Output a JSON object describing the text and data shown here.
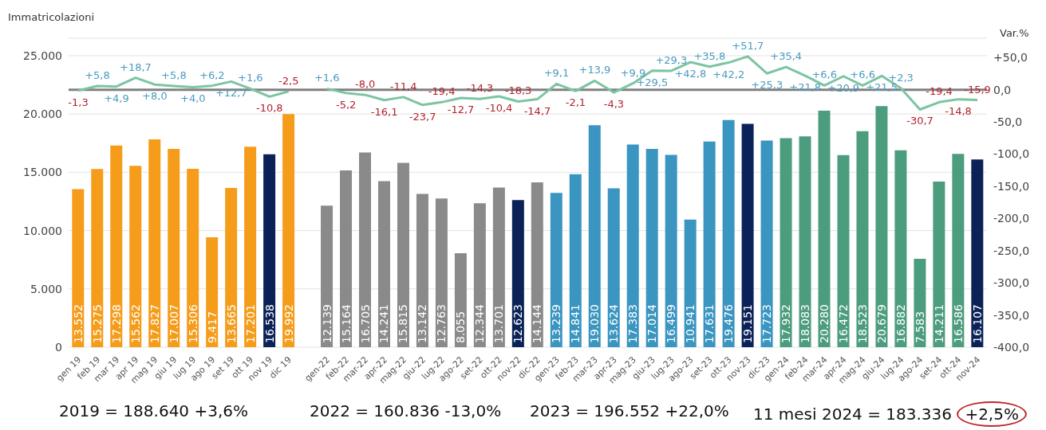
{
  "chart_data": {
    "type": "bar",
    "ylabel": "Immatricolazioni",
    "y2label": "Var.%",
    "categories": [
      "gen 19",
      "feb 19",
      "mar 19",
      "apr 19",
      "mag 19",
      "giu 19",
      "lug 19",
      "ago 19",
      "set 19",
      "ott 19",
      "nov 19",
      "dic 19",
      null,
      "gen-22",
      "feb-22",
      "mar-22",
      "apr-22",
      "mag-22",
      "giu-22",
      "lug-22",
      "ago-22",
      "set-22",
      "ott-22",
      "nov-22",
      "dic-22",
      "gen-23",
      "feb-23",
      "mar-23",
      "apr-23",
      "mag-23",
      "giu-23",
      "lug-23",
      "ago-23",
      "set-23",
      "ott-23",
      "nov-23",
      "dic-23",
      "gen-24",
      "feb-24",
      "mar-24",
      "apr-24",
      "mag-24",
      "giu-24",
      "lug-24",
      "ago-24",
      "set-24",
      "ott-24",
      "nov-24"
    ],
    "series": [
      {
        "values": [
          13552,
          15275,
          17298,
          15562,
          17827,
          17007,
          15306,
          9417,
          13665,
          17201,
          16538,
          19992,
          null,
          12139,
          15164,
          16705,
          14241,
          15815,
          13142,
          12763,
          8055,
          12344,
          13701,
          12623,
          14144,
          13239,
          14841,
          19030,
          13624,
          17383,
          17014,
          16499,
          10941,
          17631,
          19476,
          19151,
          17723,
          17932,
          18083,
          20280,
          16472,
          18523,
          20679,
          16882,
          7583,
          14211,
          16586,
          16107
        ],
        "colors": [
          "#f59c1a",
          "#f59c1a",
          "#f59c1a",
          "#f59c1a",
          "#f59c1a",
          "#f59c1a",
          "#f59c1a",
          "#f59c1a",
          "#f59c1a",
          "#f59c1a",
          "#0b2258",
          "#f59c1a",
          null,
          "#8a8a8a",
          "#8a8a8a",
          "#8a8a8a",
          "#8a8a8a",
          "#8a8a8a",
          "#8a8a8a",
          "#8a8a8a",
          "#8a8a8a",
          "#8a8a8a",
          "#8a8a8a",
          "#0b2258",
          "#8a8a8a",
          "#3a95c0",
          "#3a95c0",
          "#3a95c0",
          "#3a95c0",
          "#3a95c0",
          "#3a95c0",
          "#3a95c0",
          "#3a95c0",
          "#3a95c0",
          "#3a95c0",
          "#0b2258",
          "#3a95c0",
          "#4c9c7e",
          "#4c9c7e",
          "#4c9c7e",
          "#4c9c7e",
          "#4c9c7e",
          "#4c9c7e",
          "#4c9c7e",
          "#4c9c7e",
          "#4c9c7e",
          "#4c9c7e",
          "#0b2258"
        ],
        "value_labels": [
          "13.552",
          "15.275",
          "17.298",
          "15.562",
          "17.827",
          "17.007",
          "15.306",
          "9.417",
          "13.665",
          "17.201",
          "16.538",
          "19.992",
          null,
          "12.139",
          "15.164",
          "16.705",
          "14.241",
          "15.815",
          "13.142",
          "12.763",
          "8.055",
          "12.344",
          "13.701",
          "12.623",
          "14.144",
          "13.239",
          "14.841",
          "19.030",
          "13.624",
          "17.383",
          "17.014",
          "16.499",
          "10.941",
          "17.631",
          "19.476",
          "19.151",
          "17.723",
          "17.932",
          "18.083",
          "20.280",
          "16.472",
          "18.523",
          "20.679",
          "16.882",
          "7.583",
          "14.211",
          "16.586",
          "16.107"
        ]
      },
      {
        "type": "line",
        "axis": "y2",
        "color": "#7cc4a2",
        "values": [
          -1.3,
          5.8,
          4.9,
          18.7,
          8.0,
          5.8,
          4.0,
          6.2,
          12.7,
          1.6,
          -10.8,
          -2.5,
          null,
          1.6,
          -5.2,
          -8.0,
          -16.1,
          -11.4,
          -23.7,
          -19.4,
          -12.7,
          -14.3,
          -10.4,
          -18.3,
          -14.7,
          9.1,
          -2.1,
          13.9,
          -4.3,
          9.9,
          29.5,
          29.3,
          42.8,
          35.8,
          42.2,
          51.7,
          25.3,
          35.4,
          21.8,
          6.6,
          20.9,
          6.6,
          21.5,
          2.3,
          -30.7,
          -19.4,
          -14.8,
          -15.9
        ],
        "value_labels": [
          "-1,3",
          "+5,8",
          "+4,9",
          "+18,7",
          "+8,0",
          "+5,8",
          "+4,0",
          "+6,2",
          "+12,7",
          "+1,6",
          "-10,8",
          "-2,5",
          null,
          "+1,6",
          "-5,2",
          "-8,0",
          "-16,1",
          "-11,4",
          "-23,7",
          "-19,4",
          "-12,7",
          "-14,3",
          "-10,4",
          "-18,3",
          "-14,7",
          "+9,1",
          "-2,1",
          "+13,9",
          "-4,3",
          "+9,9",
          "+29,5",
          "+29,3",
          "+42,8",
          "+35,8",
          "+42,2",
          "+51,7",
          "+25,3",
          "+35,4",
          "+21,8",
          "+6,6",
          "+20,9",
          "+6,6",
          "+21,5",
          "+2,3",
          "-30,7",
          "-19,4",
          "-14,8",
          "-15,9"
        ]
      }
    ],
    "ylim": [
      0,
      26500
    ],
    "yticks": [
      0,
      {
        "value": 5000,
        "label": "5.000"
      },
      {
        "value": 10000,
        "label": "10.000"
      },
      {
        "value": 15000,
        "label": "15.000"
      },
      {
        "value": 20000,
        "label": "20.000"
      },
      {
        "value": 25000,
        "label": "25.000"
      }
    ],
    "y2lim": [
      -400,
      80
    ],
    "y2ticks": [
      {
        "value": -400,
        "label": "-400,0"
      },
      {
        "value": -350,
        "label": "-350,0"
      },
      {
        "value": -300,
        "label": "-300,0"
      },
      {
        "value": -250,
        "label": "-250,0"
      },
      {
        "value": -200,
        "label": "-200,0"
      },
      {
        "value": -150,
        "label": "-150,0"
      },
      {
        "value": -100,
        "label": "-100,0"
      },
      {
        "value": -50,
        "label": "-50,0"
      },
      {
        "value": 0,
        "label": "0,0"
      },
      {
        "value": 50,
        "label": "+50,0"
      }
    ],
    "ref_lines": [
      {
        "axis": "y2",
        "value": 0,
        "color": "#808080"
      }
    ],
    "grid": "y",
    "annotations": [
      "2019 = 188.640 +3,6%",
      "2022 = 160.836 -13,0%",
      "2023 = 196.552 +22,0%",
      "11 mesi 2024 = 183.336 +2,5%"
    ]
  }
}
